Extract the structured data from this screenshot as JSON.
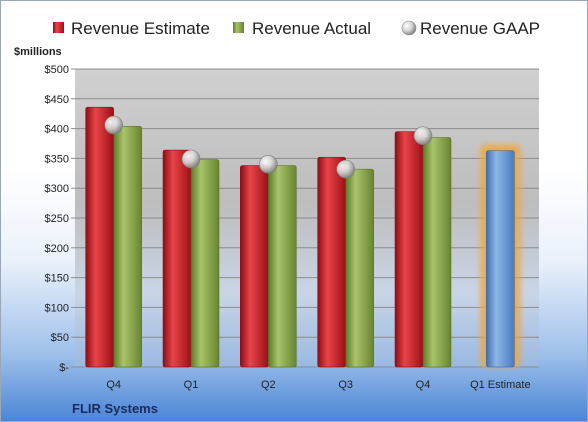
{
  "chart_data": {
    "type": "bar",
    "ylabel": "$millions",
    "footer": "FLIR Systems",
    "categories": [
      "Q4",
      "Q1",
      "Q2",
      "Q3",
      "Q4",
      "Q1 Estimate"
    ],
    "ylim": [
      0,
      500
    ],
    "yticks": [
      {
        "value": 0,
        "label": "$-"
      },
      {
        "value": 50,
        "label": "$50"
      },
      {
        "value": 100,
        "label": "$100"
      },
      {
        "value": 150,
        "label": "$150"
      },
      {
        "value": 200,
        "label": "$200"
      },
      {
        "value": 250,
        "label": "$250"
      },
      {
        "value": 300,
        "label": "$300"
      },
      {
        "value": 350,
        "label": "$350"
      },
      {
        "value": 400,
        "label": "$400"
      },
      {
        "value": 450,
        "label": "$450"
      },
      {
        "value": 500,
        "label": "$500"
      }
    ],
    "grid": true,
    "legend": "top",
    "series": [
      {
        "name": "Revenue Estimate",
        "kind": "bar",
        "color": "#c0161d",
        "values": [
          436,
          364,
          338,
          352,
          395,
          null
        ]
      },
      {
        "name": "Revenue Actual",
        "kind": "bar",
        "color": "#8aa64a",
        "values": [
          404,
          348,
          338,
          332,
          385,
          null
        ]
      },
      {
        "name": "Revenue GAAP",
        "kind": "marker",
        "color": "#c9c9c9",
        "values": [
          406,
          349,
          340,
          332,
          388,
          null
        ]
      }
    ],
    "estimate_bar": {
      "category": "Q1 Estimate",
      "value": 363,
      "color": "#6f9fd8",
      "glow_color": "#f0a640"
    }
  }
}
